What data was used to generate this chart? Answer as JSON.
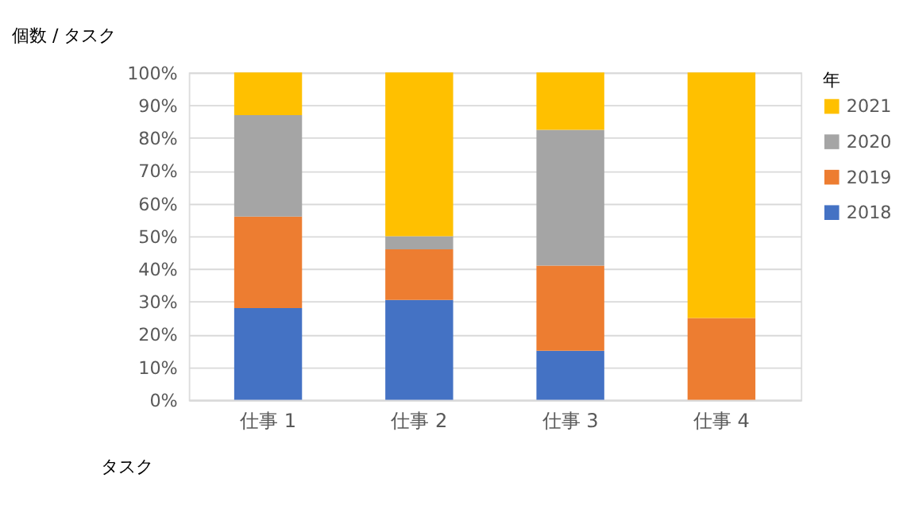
{
  "chart_data": {
    "type": "bar",
    "stacked": true,
    "title": "個数 / タスク",
    "xlabel": "タスク",
    "legend_title": "年",
    "categories": [
      "仕事 1",
      "仕事 2",
      "仕事 3",
      "仕事 4"
    ],
    "series": [
      {
        "name": "2018",
        "color": "#4472c4",
        "values": [
          28,
          30.5,
          15,
          0
        ]
      },
      {
        "name": "2019",
        "color": "#ed7d31",
        "values": [
          28,
          15.5,
          26,
          25
        ]
      },
      {
        "name": "2020",
        "color": "#a5a5a5",
        "values": [
          31,
          4,
          41.5,
          0
        ]
      },
      {
        "name": "2021",
        "color": "#ffc000",
        "values": [
          13,
          50,
          17.5,
          75
        ]
      }
    ],
    "ylim": [
      0,
      100
    ],
    "yticks": [
      {
        "value": 0,
        "label": "0%"
      },
      {
        "value": 10,
        "label": "10%"
      },
      {
        "value": 20,
        "label": "20%"
      },
      {
        "value": 30,
        "label": "30%"
      },
      {
        "value": 40,
        "label": "40%"
      },
      {
        "value": 50,
        "label": "50%"
      },
      {
        "value": 60,
        "label": "60%"
      },
      {
        "value": 70,
        "label": "70%"
      },
      {
        "value": 80,
        "label": "80%"
      },
      {
        "value": 90,
        "label": "90%"
      },
      {
        "value": 100,
        "label": "100%"
      }
    ],
    "grid": "y",
    "legend": "right"
  }
}
